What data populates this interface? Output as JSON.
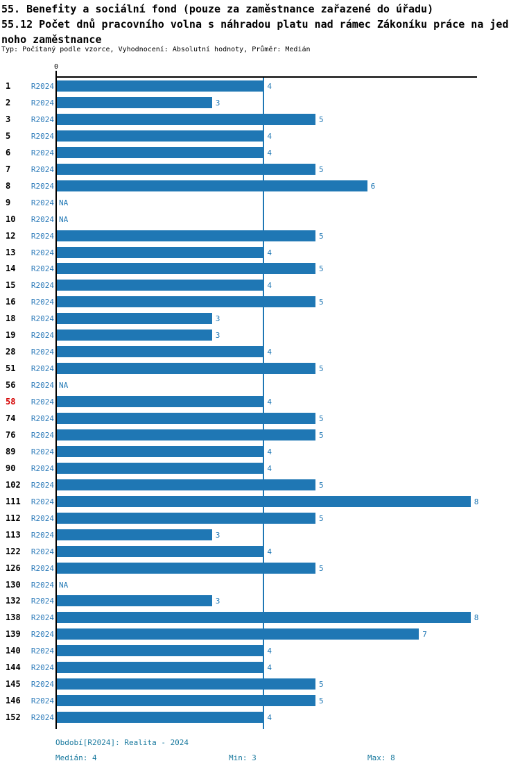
{
  "header": {
    "title_line1": "55. Benefity a sociální fond (pouze za zaměstnance zařazené do úřadu)",
    "title_line2": "55.12 Počet dnů pracovního volna s náhradou platu nad rámec Zákoníku práce na jed",
    "title_line3": "noho zaměstnance",
    "subtitle": "Typ: Počítaný podle vzorce, Vyhodnocení: Absolutní hodnoty, Průměr: Medián"
  },
  "axis": {
    "zero_label": "0"
  },
  "chart_data": {
    "type": "bar",
    "orientation": "horizontal",
    "series_label": "R2024",
    "na_text": "NA",
    "median_value": 4,
    "x_min": 0,
    "x_max": 8.13,
    "highlight_category": "58",
    "categories": [
      "1",
      "2",
      "3",
      "5",
      "6",
      "7",
      "8",
      "9",
      "10",
      "12",
      "13",
      "14",
      "15",
      "16",
      "18",
      "19",
      "28",
      "51",
      "56",
      "58",
      "74",
      "76",
      "89",
      "90",
      "102",
      "111",
      "112",
      "113",
      "122",
      "126",
      "130",
      "132",
      "138",
      "139",
      "140",
      "144",
      "145",
      "146",
      "152"
    ],
    "values": [
      4,
      3,
      5,
      4,
      4,
      5,
      6,
      null,
      null,
      5,
      4,
      5,
      4,
      5,
      3,
      3,
      4,
      5,
      null,
      4,
      5,
      5,
      4,
      4,
      5,
      8,
      5,
      3,
      4,
      5,
      null,
      3,
      8,
      7,
      4,
      4,
      5,
      5,
      4
    ],
    "legend_position": "none",
    "grid": "median-line-only",
    "colors": {
      "bar": "#1f77b4",
      "median_line": "#1f77b4",
      "series_label": "#2878b8",
      "value_label": "#1f77b4",
      "highlight_row_label": "#d40000",
      "row_label": "#000000",
      "footer_text": "#19799e",
      "axis": "#000000"
    }
  },
  "footer": {
    "period": "Období[R2024]: Realita - 2024",
    "median": "Medián: 4",
    "min": "Min: 3",
    "max": "Max: 8"
  }
}
